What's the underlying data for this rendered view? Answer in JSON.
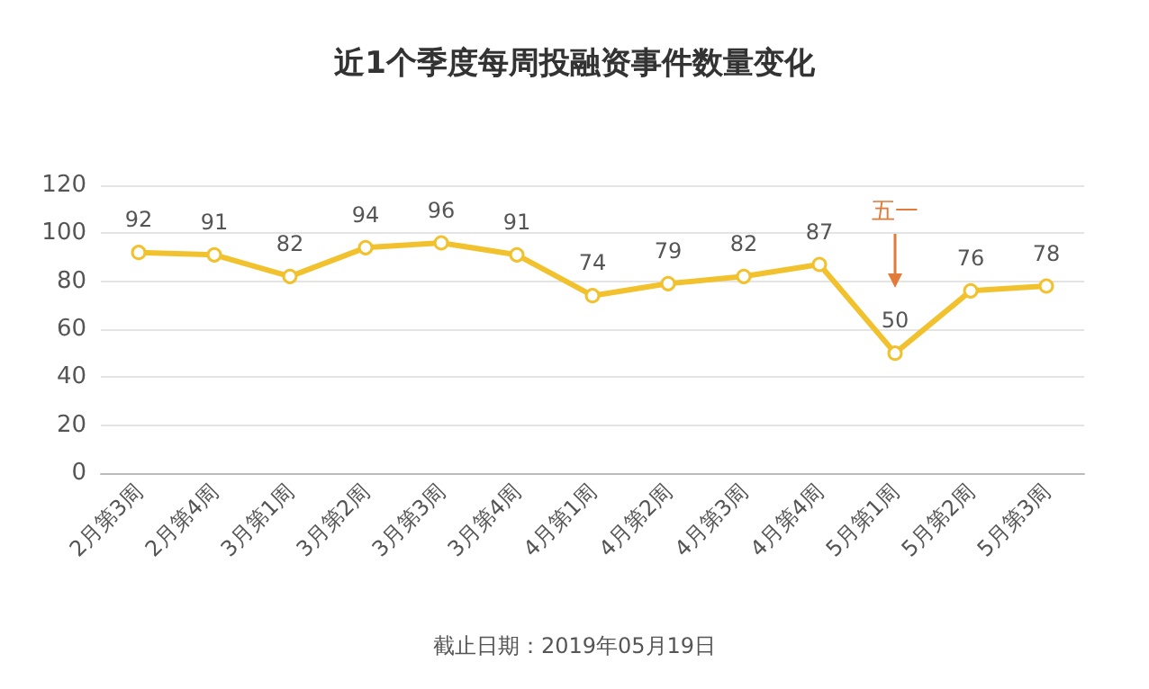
{
  "chart_data": {
    "type": "line",
    "title": "近1个季度每周投融资事件数量变化",
    "categories": [
      "2月第3周",
      "2月第4周",
      "3月第1周",
      "3月第2周",
      "3月第3周",
      "3月第4周",
      "4月第1周",
      "4月第2周",
      "4月第3周",
      "4月第4周",
      "5月第1周",
      "5月第2周",
      "5月第3周"
    ],
    "series": [
      {
        "color": "#f2c12e",
        "values": [
          92,
          91,
          82,
          94,
          96,
          91,
          74,
          79,
          82,
          87,
          50,
          76,
          78
        ]
      }
    ],
    "ylim": [
      0,
      120
    ],
    "yticks": [
      0,
      20,
      40,
      60,
      80,
      100,
      120
    ],
    "grid": "y",
    "marker": "circle",
    "line_style": "solid",
    "data_labels": true,
    "annotations": [
      "五一",
      "截止日期：2019年05月19日"
    ]
  }
}
